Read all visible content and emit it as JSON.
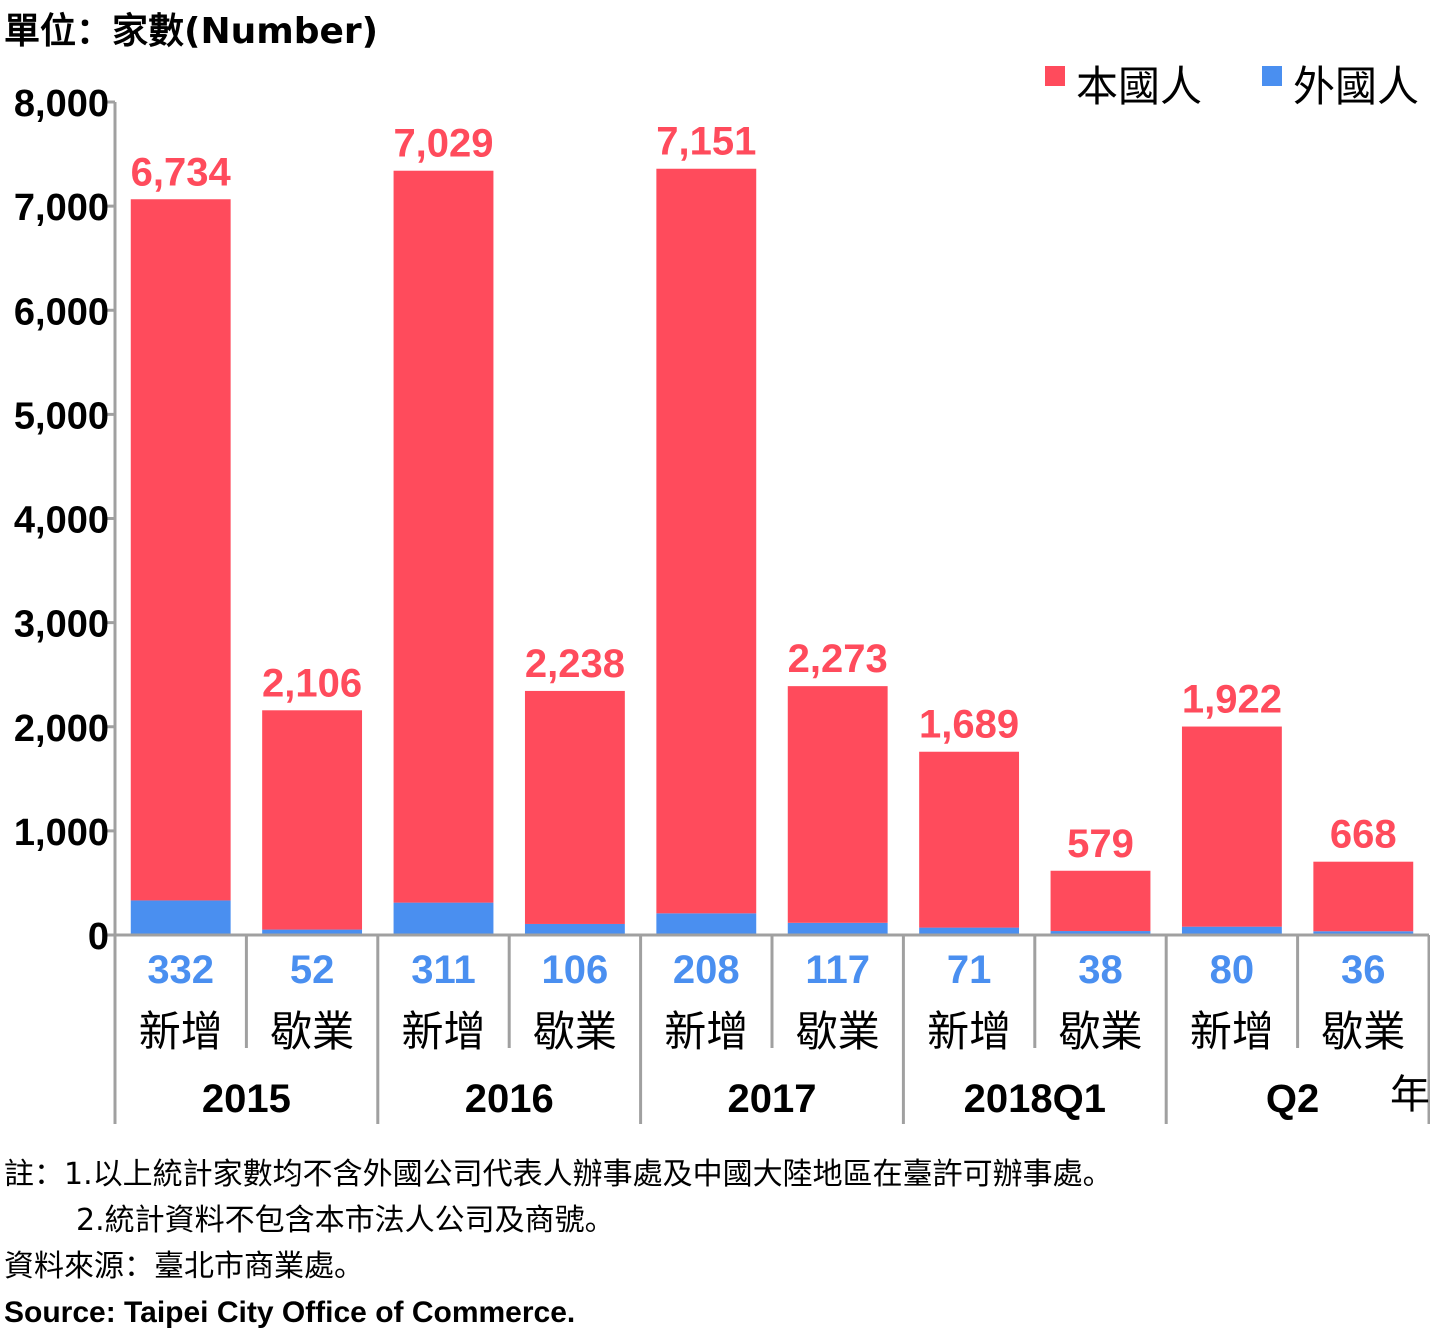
{
  "unit_label": "單位：家數(Number)",
  "chart_data": {
    "type": "bar",
    "stacked": true,
    "ylim": [
      0,
      8000
    ],
    "y_ticks": [
      0,
      1000,
      2000,
      3000,
      4000,
      5000,
      6000,
      7000,
      8000
    ],
    "y_tick_labels": [
      "0",
      "1,000",
      "2,000",
      "3,000",
      "4,000",
      "5,000",
      "6,000",
      "7,000",
      "8,000"
    ],
    "categories": [
      "新增",
      "歇業",
      "新增",
      "歇業",
      "新增",
      "歇業",
      "新增",
      "歇業",
      "新增",
      "歇業"
    ],
    "groups": [
      {
        "label": "2015",
        "span": 2
      },
      {
        "label": "2016",
        "span": 2
      },
      {
        "label": "2017",
        "span": 2
      },
      {
        "label": "2018Q1",
        "span": 2
      },
      {
        "label": "Q2",
        "span": 2
      }
    ],
    "x_unit_label": "年",
    "series": [
      {
        "name": "本國人",
        "color": "#FF4B5C",
        "values": [
          6734,
          2106,
          7029,
          2238,
          7151,
          2273,
          1689,
          579,
          1922,
          668
        ],
        "labels": [
          "6,734",
          "2,106",
          "7,029",
          "2,238",
          "7,151",
          "2,273",
          "1,689",
          "579",
          "1,922",
          "668"
        ]
      },
      {
        "name": "外國人",
        "color": "#4A8FF0",
        "values": [
          332,
          52,
          311,
          106,
          208,
          117,
          71,
          38,
          80,
          36
        ],
        "labels": [
          "332",
          "52",
          "311",
          "106",
          "208",
          "117",
          "71",
          "38",
          "80",
          "36"
        ]
      }
    ],
    "grid": false,
    "legend_position": "top-right"
  },
  "notes": [
    "註：1.以上統計家數均不含外國公司代表人辦事處及中國大陸地區在臺許可辦事處。",
    "2.統計資料不包含本市法人公司及商號。",
    "資料來源：臺北市商業處。",
    "Source: Taipei City Office of Commerce."
  ]
}
